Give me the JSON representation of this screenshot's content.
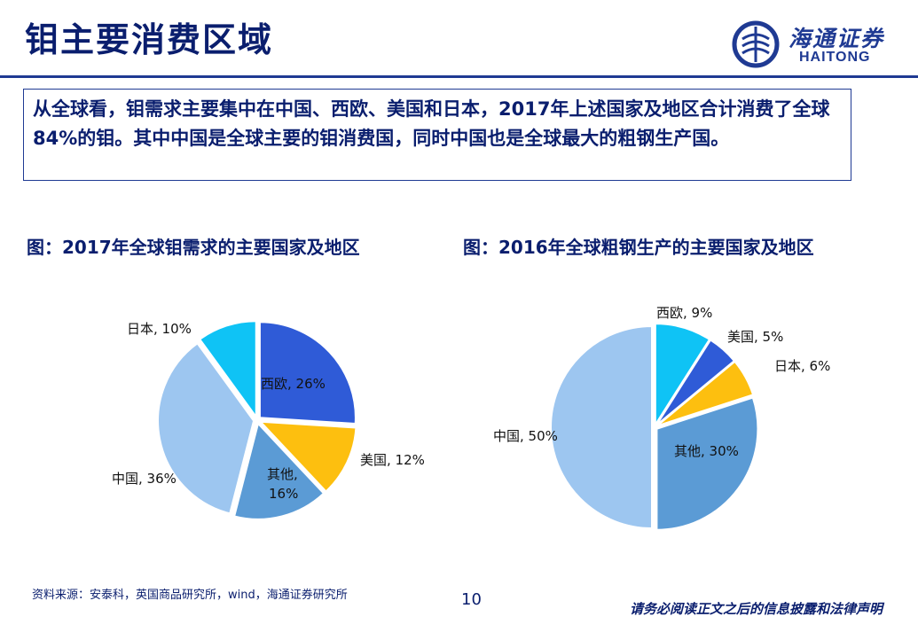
{
  "header": {
    "title": "钼主要消费区域",
    "brand_cn": "海通证券",
    "brand_en": "HAITONG"
  },
  "summary": {
    "text": "从全球看，钼需求主要集中在中国、西欧、美国和日本，2017年上述国家及地区合计消费了全球84%的钼。其中中国是全球主要的钼消费国，同时中国也是全球最大的粗钢生产国。"
  },
  "colors": {
    "navy": "#0a1e6e",
    "rule": "#1f3a93",
    "china": "#9dc6f0",
    "west_europe": "#2f5bd7",
    "usa": "#fdbf0f",
    "other": "#5b9bd5",
    "japan": "#0fc3f5"
  },
  "chart_data": [
    {
      "type": "pie",
      "title": "图：2017年全球钼需求的主要国家及地区",
      "slices": [
        {
          "name": "西欧",
          "value": 26,
          "label": "西欧, 26%"
        },
        {
          "name": "美国",
          "value": 12,
          "label": "美国, 12%"
        },
        {
          "name": "其他",
          "value": 16,
          "label_line1": "其他,",
          "label_line2": "16%"
        },
        {
          "name": "中国",
          "value": 36,
          "label": "中国, 36%"
        },
        {
          "name": "日本",
          "value": 10,
          "label": "日本, 10%"
        }
      ],
      "exploded": true
    },
    {
      "type": "pie",
      "title": "图：2016年全球粗钢生产的主要国家及地区",
      "slices": [
        {
          "name": "西欧",
          "value": 9,
          "label": "西欧, 9%"
        },
        {
          "name": "美国",
          "value": 5,
          "label": "美国, 5%"
        },
        {
          "name": "日本",
          "value": 6,
          "label": "日本, 6%"
        },
        {
          "name": "其他",
          "value": 30,
          "label": "其他, 30%"
        },
        {
          "name": "中国",
          "value": 50,
          "label": "中国, 50%"
        }
      ],
      "exploded": true
    }
  ],
  "footer": {
    "source": "资料来源：安泰科，英国商品研究所，wind，海通证券研究所",
    "page": "10",
    "disclaimer": "请务必阅读正文之后的信息披露和法律声明"
  }
}
